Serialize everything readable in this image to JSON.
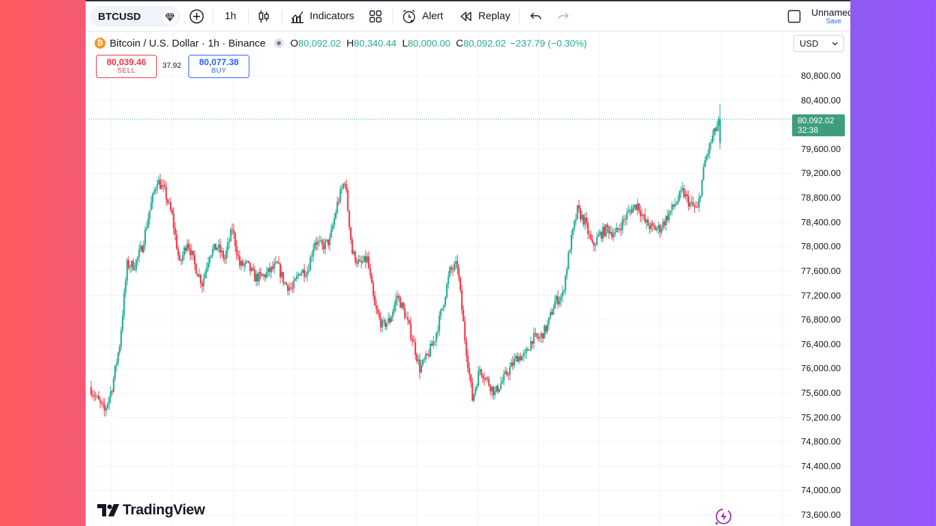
{
  "toolbar": {
    "symbol": "BTCUSD",
    "interval": "1h",
    "indicators_label": "Indicators",
    "alert_label": "Alert",
    "replay_label": "Replay",
    "layout_name": "Unnamed",
    "save_label": "Save"
  },
  "legend": {
    "title": "Bitcoin / U.S. Dollar · 1h · Binance",
    "open_label": "O",
    "open": "80,092.02",
    "high_label": "H",
    "high": "80,340.44",
    "low_label": "L",
    "low": "80,000.00",
    "close_label": "C",
    "close": "80,092.02",
    "change": "−237.79 (−0.30%)"
  },
  "trade": {
    "sell_price": "80,039.46",
    "sell_label": "SELL",
    "spread": "37.92",
    "buy_price": "80,077.38",
    "buy_label": "BUY"
  },
  "currency": "USD",
  "price_tag": {
    "price": "80,092.02",
    "countdown": "32:38"
  },
  "brand": "TradingView",
  "colors": {
    "up": "#22ab94",
    "down": "#f23645",
    "tag": "#3e9e7b"
  },
  "chart_data": {
    "type": "candlestick",
    "y_axis_ticks": [
      "80,800.00",
      "80,400.00",
      "79,600.00",
      "79,200.00",
      "78,800.00",
      "78,400.00",
      "78,000.00",
      "77,600.00",
      "77,200.00",
      "76,800.00",
      "76,400.00",
      "76,000.00",
      "75,600.00",
      "75,200.00",
      "74,800.00",
      "74,400.00",
      "74,000.00",
      "73,600.00"
    ],
    "ylim": [
      73600,
      80800
    ],
    "last_price": 80092.02,
    "close_path": [
      75700,
      75500,
      75300,
      75700,
      76400,
      77700,
      77700,
      78000,
      78600,
      79100,
      78900,
      78500,
      77700,
      78100,
      77700,
      77400,
      77900,
      78000,
      77800,
      78300,
      77700,
      77700,
      77500,
      77500,
      77600,
      77700,
      77400,
      77300,
      77600,
      77600,
      78100,
      78000,
      78100,
      78700,
      79100,
      77900,
      77700,
      77800,
      77000,
      76700,
      76800,
      77200,
      76900,
      76500,
      76000,
      76200,
      76500,
      77000,
      77600,
      77700,
      76500,
      75500,
      76000,
      75800,
      75600,
      75800,
      76000,
      76200,
      76200,
      76500,
      76500,
      76700,
      77100,
      77200,
      78000,
      78600,
      78400,
      78000,
      78200,
      78300,
      78200,
      78400,
      78600,
      78700,
      78400,
      78300,
      78300,
      78500,
      78700,
      78900,
      78700,
      78600,
      79400,
      79800,
      80092
    ]
  }
}
